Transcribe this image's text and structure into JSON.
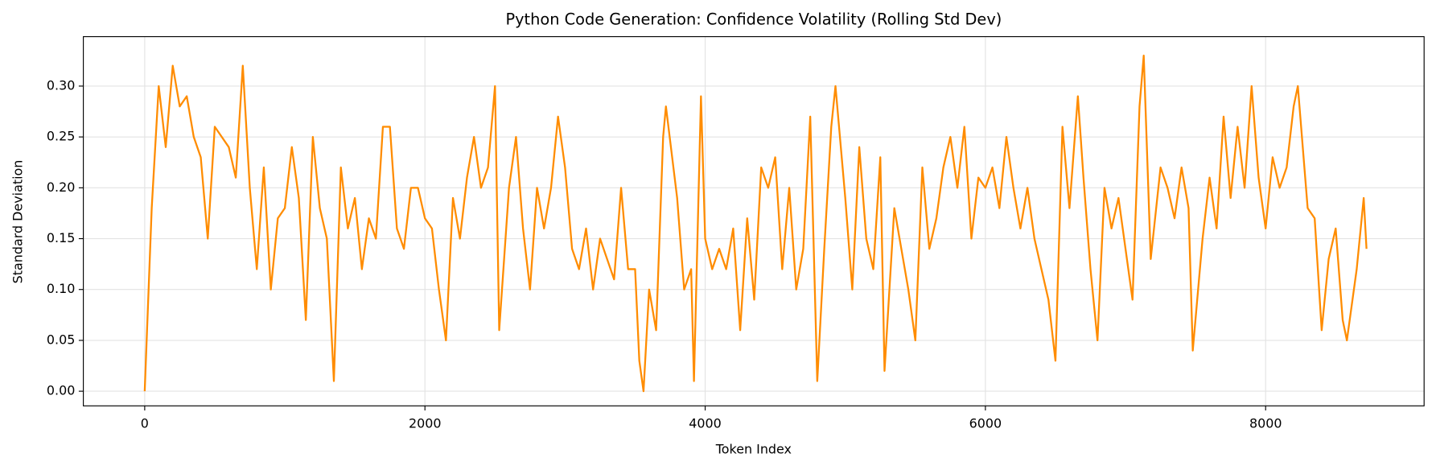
{
  "chart_data": {
    "type": "line",
    "title": "Python Code Generation: Confidence Volatility (Rolling Std Dev)",
    "xlabel": "Token Index",
    "ylabel": "Standard Deviation",
    "color": "#ff8c00",
    "grid": true,
    "xlim": [
      -438,
      9131
    ],
    "ylim": [
      -0.0144,
      0.3486
    ],
    "xticks": [
      0,
      2000,
      4000,
      6000,
      8000
    ],
    "yticks": [
      {
        "value": 0,
        "label": "0.00"
      },
      {
        "value": 0.05,
        "label": "0.05"
      },
      {
        "value": 0.1,
        "label": "0.10"
      },
      {
        "value": 0.15,
        "label": "0.15"
      },
      {
        "value": 0.2,
        "label": "0.20"
      },
      {
        "value": 0.25,
        "label": "0.25"
      },
      {
        "value": 0.3,
        "label": "0.30"
      }
    ],
    "x": [
      0,
      50,
      100,
      150,
      200,
      250,
      300,
      350,
      400,
      450,
      500,
      550,
      600,
      650,
      700,
      750,
      800,
      850,
      900,
      950,
      1000,
      1050,
      1100,
      1150,
      1200,
      1250,
      1300,
      1350,
      1400,
      1450,
      1500,
      1550,
      1600,
      1650,
      1700,
      1750,
      1800,
      1850,
      1900,
      1950,
      2000,
      2050,
      2100,
      2150,
      2200,
      2250,
      2300,
      2350,
      2400,
      2450,
      2500,
      2530,
      2600,
      2650,
      2700,
      2750,
      2800,
      2850,
      2900,
      2950,
      3000,
      3050,
      3100,
      3150,
      3200,
      3250,
      3300,
      3350,
      3400,
      3450,
      3500,
      3530,
      3560,
      3600,
      3650,
      3700,
      3720,
      3800,
      3850,
      3900,
      3920,
      3970,
      4000,
      4050,
      4100,
      4150,
      4200,
      4250,
      4300,
      4350,
      4400,
      4450,
      4500,
      4550,
      4600,
      4650,
      4700,
      4750,
      4800,
      4850,
      4900,
      4930,
      5000,
      5050,
      5100,
      5150,
      5200,
      5250,
      5280,
      5350,
      5400,
      5450,
      5500,
      5550,
      5600,
      5650,
      5700,
      5750,
      5800,
      5850,
      5900,
      5950,
      6000,
      6050,
      6100,
      6150,
      6200,
      6250,
      6300,
      6350,
      6400,
      6450,
      6500,
      6550,
      6600,
      6660,
      6700,
      6750,
      6800,
      6850,
      6900,
      6950,
      7000,
      7050,
      7100,
      7130,
      7180,
      7250,
      7300,
      7350,
      7400,
      7450,
      7480,
      7550,
      7600,
      7650,
      7700,
      7750,
      7800,
      7850,
      7900,
      7950,
      8000,
      8050,
      8100,
      8150,
      8200,
      8230,
      8300,
      8350,
      8400,
      8450,
      8500,
      8550,
      8580,
      8650,
      8700,
      8720
    ],
    "values": [
      0.0,
      0.18,
      0.3,
      0.24,
      0.32,
      0.28,
      0.29,
      0.25,
      0.23,
      0.15,
      0.26,
      0.25,
      0.24,
      0.21,
      0.32,
      0.2,
      0.12,
      0.22,
      0.1,
      0.17,
      0.18,
      0.24,
      0.19,
      0.07,
      0.25,
      0.18,
      0.15,
      0.01,
      0.22,
      0.16,
      0.19,
      0.12,
      0.17,
      0.15,
      0.26,
      0.26,
      0.16,
      0.14,
      0.2,
      0.2,
      0.17,
      0.16,
      0.1,
      0.05,
      0.19,
      0.15,
      0.21,
      0.25,
      0.2,
      0.22,
      0.3,
      0.06,
      0.2,
      0.25,
      0.16,
      0.1,
      0.2,
      0.16,
      0.2,
      0.27,
      0.22,
      0.14,
      0.12,
      0.16,
      0.1,
      0.15,
      0.13,
      0.11,
      0.2,
      0.12,
      0.12,
      0.03,
      0.0,
      0.1,
      0.06,
      0.25,
      0.28,
      0.19,
      0.1,
      0.12,
      0.01,
      0.29,
      0.15,
      0.12,
      0.14,
      0.12,
      0.16,
      0.06,
      0.17,
      0.09,
      0.22,
      0.2,
      0.23,
      0.12,
      0.2,
      0.1,
      0.14,
      0.27,
      0.01,
      0.14,
      0.26,
      0.3,
      0.19,
      0.1,
      0.24,
      0.15,
      0.12,
      0.23,
      0.02,
      0.18,
      0.14,
      0.1,
      0.05,
      0.22,
      0.14,
      0.17,
      0.22,
      0.25,
      0.2,
      0.26,
      0.15,
      0.21,
      0.2,
      0.22,
      0.18,
      0.25,
      0.2,
      0.16,
      0.2,
      0.15,
      0.12,
      0.09,
      0.03,
      0.26,
      0.18,
      0.29,
      0.21,
      0.12,
      0.05,
      0.2,
      0.16,
      0.19,
      0.14,
      0.09,
      0.28,
      0.33,
      0.13,
      0.22,
      0.2,
      0.17,
      0.22,
      0.18,
      0.04,
      0.15,
      0.21,
      0.16,
      0.27,
      0.19,
      0.26,
      0.2,
      0.3,
      0.21,
      0.16,
      0.23,
      0.2,
      0.22,
      0.28,
      0.3,
      0.18,
      0.17,
      0.06,
      0.13,
      0.16,
      0.07,
      0.05,
      0.12,
      0.19,
      0.14
    ]
  }
}
